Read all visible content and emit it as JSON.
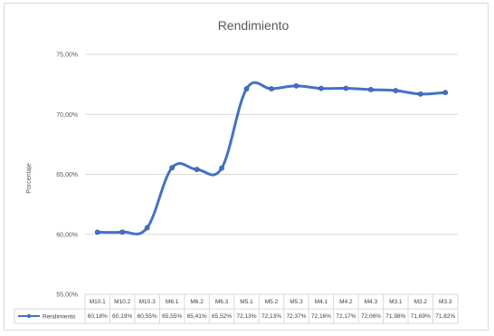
{
  "chart_data": {
    "type": "line",
    "title": "Rendimiento",
    "xlabel": "",
    "ylabel": "Porcentaje",
    "ylim": [
      55,
      75
    ],
    "yticks": [
      "55,00%",
      "60,00%",
      "65,00%",
      "70,00%",
      "75,00%"
    ],
    "ytick_values": [
      55,
      60,
      65,
      70,
      75
    ],
    "grid": true,
    "legend": "data-table-bottom",
    "categories": [
      "M10.1",
      "M10.2",
      "M10.3",
      "M6.1",
      "M6.2",
      "M6.3",
      "M5.1",
      "M5.2",
      "M5.3",
      "M4.1",
      "M4.2",
      "M4.3",
      "M3.1",
      "M3.2",
      "M3.3"
    ],
    "series": [
      {
        "name": "Rendimiento",
        "color": "#4472C4",
        "values": [
          60.18,
          60.19,
          60.55,
          65.55,
          65.41,
          65.52,
          72.13,
          72.13,
          72.37,
          72.16,
          72.17,
          72.06,
          71.98,
          71.69,
          71.82
        ],
        "value_labels": [
          "60,18%",
          "60,19%",
          "60,55%",
          "65,55%",
          "65,41%",
          "65,52%",
          "72,13%",
          "72,13%",
          "72,37%",
          "72,16%",
          "72,17%",
          "72,06%",
          "71,98%",
          "71,69%",
          "71,82%"
        ]
      }
    ]
  }
}
